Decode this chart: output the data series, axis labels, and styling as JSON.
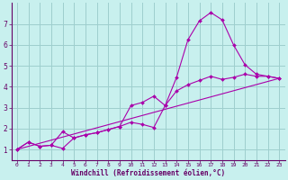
{
  "background_color": "#c8f0ee",
  "line_color": "#aa00aa",
  "grid_color": "#9ecece",
  "xlabel": "Windchill (Refroidissement éolien,°C)",
  "xlabel_color": "#660066",
  "axis_color": "#660066",
  "tick_color": "#660066",
  "xlim": [
    -0.5,
    23.5
  ],
  "ylim": [
    0.5,
    8.0
  ],
  "yticks": [
    1,
    2,
    3,
    4,
    5,
    6,
    7
  ],
  "xticks": [
    0,
    1,
    2,
    3,
    4,
    5,
    6,
    7,
    8,
    9,
    10,
    11,
    12,
    13,
    14,
    15,
    16,
    17,
    18,
    19,
    20,
    21,
    22,
    23
  ],
  "line1_x": [
    0,
    1,
    2,
    3,
    4,
    5,
    6,
    7,
    8,
    9,
    10,
    11,
    12,
    13,
    14,
    15,
    16,
    17,
    18,
    19,
    20,
    21,
    22,
    23
  ],
  "line1_y": [
    1.0,
    1.35,
    1.15,
    1.2,
    1.05,
    1.55,
    1.7,
    1.8,
    1.95,
    2.1,
    3.1,
    3.25,
    3.55,
    3.1,
    4.45,
    6.25,
    7.15,
    7.55,
    7.2,
    6.0,
    5.05,
    4.6,
    4.5,
    4.4
  ],
  "line2_x": [
    0,
    1,
    2,
    3,
    4,
    5,
    6,
    7,
    8,
    9,
    10,
    11,
    12,
    13,
    14,
    15,
    16,
    17,
    18,
    19,
    20,
    21,
    22,
    23
  ],
  "line2_y": [
    1.0,
    1.35,
    1.15,
    1.2,
    1.85,
    1.55,
    1.7,
    1.8,
    1.95,
    2.1,
    2.3,
    2.2,
    2.05,
    3.1,
    3.8,
    4.1,
    4.3,
    4.5,
    4.35,
    4.45,
    4.6,
    4.5,
    4.5,
    4.4
  ],
  "line3_x": [
    0,
    23
  ],
  "line3_y": [
    1.0,
    4.4
  ]
}
